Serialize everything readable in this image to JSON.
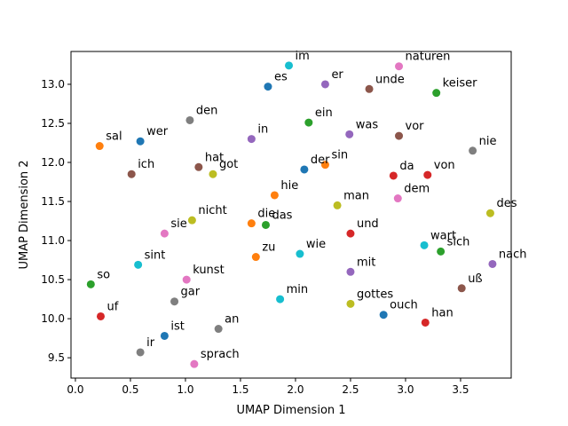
{
  "chart_data": {
    "type": "scatter",
    "xlabel": "UMAP Dimension 1",
    "ylabel": "UMAP Dimension 2",
    "xlim": [
      -0.04,
      3.96
    ],
    "ylim": [
      9.24,
      13.42
    ],
    "xticks": [
      "0.0",
      "0.5",
      "1.0",
      "1.5",
      "2.0",
      "2.5",
      "3.0",
      "3.5"
    ],
    "yticks": [
      "9.5",
      "10.0",
      "10.5",
      "11.0",
      "11.5",
      "12.0",
      "12.5",
      "13.0"
    ],
    "grid": false,
    "points": [
      {
        "label": "im",
        "x": 1.94,
        "y": 13.24,
        "color": "#17becf"
      },
      {
        "label": "naturen",
        "x": 2.94,
        "y": 13.23,
        "color": "#e377c2"
      },
      {
        "label": "es",
        "x": 1.75,
        "y": 12.97,
        "color": "#1f77b4"
      },
      {
        "label": "er",
        "x": 2.27,
        "y": 13.0,
        "color": "#9467bd"
      },
      {
        "label": "unde",
        "x": 2.67,
        "y": 12.94,
        "color": "#8c564b"
      },
      {
        "label": "keiser",
        "x": 3.28,
        "y": 12.89,
        "color": "#2ca02c"
      },
      {
        "label": "den",
        "x": 1.04,
        "y": 12.54,
        "color": "#7f7f7f"
      },
      {
        "label": "ein",
        "x": 2.12,
        "y": 12.51,
        "color": "#2ca02c"
      },
      {
        "label": "was",
        "x": 2.49,
        "y": 12.36,
        "color": "#9467bd"
      },
      {
        "label": "vor",
        "x": 2.94,
        "y": 12.34,
        "color": "#8c564b"
      },
      {
        "label": "sal",
        "x": 0.22,
        "y": 12.21,
        "color": "#ff7f0e"
      },
      {
        "label": "wer",
        "x": 0.59,
        "y": 12.27,
        "color": "#1f77b4"
      },
      {
        "label": "in",
        "x": 1.6,
        "y": 12.3,
        "color": "#9467bd"
      },
      {
        "label": "nie",
        "x": 3.61,
        "y": 12.15,
        "color": "#7f7f7f"
      },
      {
        "label": "ich",
        "x": 0.51,
        "y": 11.85,
        "color": "#8c564b"
      },
      {
        "label": "hat",
        "x": 1.12,
        "y": 11.94,
        "color": "#8c564b"
      },
      {
        "label": "got",
        "x": 1.25,
        "y": 11.85,
        "color": "#bcbd22"
      },
      {
        "label": "der",
        "x": 2.08,
        "y": 11.91,
        "color": "#1f77b4"
      },
      {
        "label": "sin",
        "x": 2.27,
        "y": 11.97,
        "color": "#ff7f0e"
      },
      {
        "label": "da",
        "x": 2.89,
        "y": 11.83,
        "color": "#d62728"
      },
      {
        "label": "von",
        "x": 3.2,
        "y": 11.84,
        "color": "#d62728"
      },
      {
        "label": "hie",
        "x": 1.81,
        "y": 11.58,
        "color": "#ff7f0e"
      },
      {
        "label": "dem",
        "x": 2.93,
        "y": 11.54,
        "color": "#e377c2"
      },
      {
        "label": "man",
        "x": 2.38,
        "y": 11.45,
        "color": "#bcbd22"
      },
      {
        "label": "des",
        "x": 3.77,
        "y": 11.35,
        "color": "#bcbd22"
      },
      {
        "label": "nicht",
        "x": 1.06,
        "y": 11.26,
        "color": "#bcbd22"
      },
      {
        "label": "die",
        "x": 1.6,
        "y": 11.22,
        "color": "#ff7f0e"
      },
      {
        "label": "das",
        "x": 1.73,
        "y": 11.2,
        "color": "#2ca02c"
      },
      {
        "label": "sie",
        "x": 0.81,
        "y": 11.09,
        "color": "#e377c2"
      },
      {
        "label": "und",
        "x": 2.5,
        "y": 11.09,
        "color": "#d62728"
      },
      {
        "label": "wart",
        "x": 3.17,
        "y": 10.94,
        "color": "#17becf"
      },
      {
        "label": "sich",
        "x": 3.32,
        "y": 10.86,
        "color": "#2ca02c"
      },
      {
        "label": "zu",
        "x": 1.64,
        "y": 10.79,
        "color": "#ff7f0e"
      },
      {
        "label": "wie",
        "x": 2.04,
        "y": 10.83,
        "color": "#17becf"
      },
      {
        "label": "nach",
        "x": 3.79,
        "y": 10.7,
        "color": "#9467bd"
      },
      {
        "label": "sint",
        "x": 0.57,
        "y": 10.69,
        "color": "#17becf"
      },
      {
        "label": "mit",
        "x": 2.5,
        "y": 10.6,
        "color": "#9467bd"
      },
      {
        "label": "kunst",
        "x": 1.01,
        "y": 10.5,
        "color": "#e377c2"
      },
      {
        "label": "so",
        "x": 0.14,
        "y": 10.44,
        "color": "#2ca02c"
      },
      {
        "label": "uß",
        "x": 3.51,
        "y": 10.39,
        "color": "#8c564b"
      },
      {
        "label": "min",
        "x": 1.86,
        "y": 10.25,
        "color": "#17becf"
      },
      {
        "label": "gar",
        "x": 0.9,
        "y": 10.22,
        "color": "#7f7f7f"
      },
      {
        "label": "gottes",
        "x": 2.5,
        "y": 10.19,
        "color": "#bcbd22"
      },
      {
        "label": "ouch",
        "x": 2.8,
        "y": 10.05,
        "color": "#1f77b4"
      },
      {
        "label": "uf",
        "x": 0.23,
        "y": 10.03,
        "color": "#d62728"
      },
      {
        "label": "han",
        "x": 3.18,
        "y": 9.95,
        "color": "#d62728"
      },
      {
        "label": "an",
        "x": 1.3,
        "y": 9.87,
        "color": "#7f7f7f"
      },
      {
        "label": "ist",
        "x": 0.81,
        "y": 9.78,
        "color": "#1f77b4"
      },
      {
        "label": "ir",
        "x": 0.59,
        "y": 9.57,
        "color": "#7f7f7f"
      },
      {
        "label": "sprach",
        "x": 1.08,
        "y": 9.42,
        "color": "#e377c2"
      }
    ]
  }
}
